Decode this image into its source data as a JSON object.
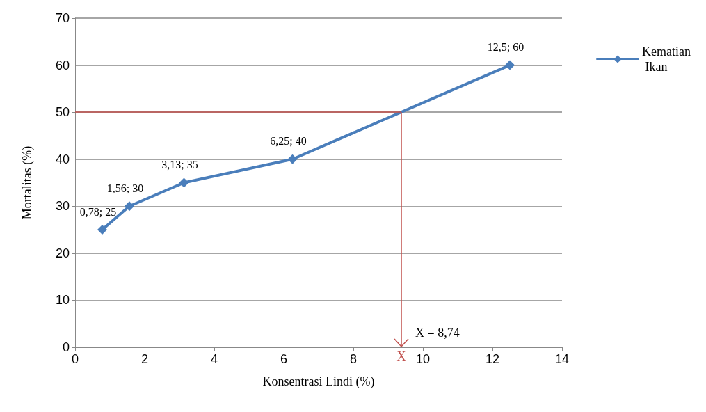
{
  "chart_data": {
    "type": "line",
    "xlabel": "Konsentrasi Lindi (%)",
    "ylabel": "Mortalitas (%)",
    "x": [
      0.78,
      1.56,
      3.13,
      6.25,
      12.5
    ],
    "series": [
      {
        "name": "Kematian Ikan",
        "color": "#4a7ebb",
        "values": [
          25,
          30,
          35,
          40,
          60
        ],
        "value_labels": [
          "0,78; 25",
          "1,56; 30",
          "3,13; 35",
          "6,25; 40",
          "12,5; 60"
        ]
      }
    ],
    "xlim": [
      0,
      14
    ],
    "xticks": [
      0,
      2,
      4,
      6,
      8,
      10,
      12,
      14
    ],
    "ylim": [
      0,
      70
    ],
    "yticks": [
      0,
      10,
      20,
      30,
      40,
      50,
      60,
      70
    ],
    "grid": "y",
    "legend": "right",
    "marker": "diamond",
    "line_style": "solid",
    "ref_lines": [
      {
        "axis": "y",
        "value": 50,
        "label": null,
        "color": "#c0504d"
      },
      {
        "axis": "x",
        "value": 9.38,
        "label": "X",
        "color": "#c0504d"
      }
    ],
    "annotations": [
      {
        "text": "X = 8,74",
        "x": 9.38,
        "y": 0
      }
    ]
  }
}
